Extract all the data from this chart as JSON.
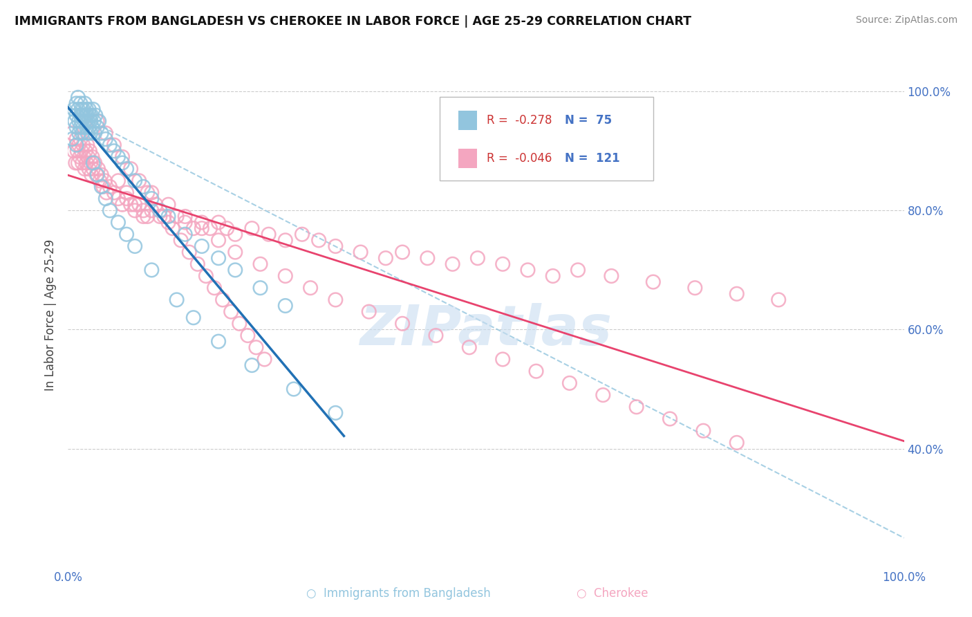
{
  "title": "IMMIGRANTS FROM BANGLADESH VS CHEROKEE IN LABOR FORCE | AGE 25-29 CORRELATION CHART",
  "source": "Source: ZipAtlas.com",
  "ylabel": "In Labor Force | Age 25-29",
  "ytick_labels": [
    "40.0%",
    "60.0%",
    "80.0%",
    "100.0%"
  ],
  "legend_r1": "-0.278",
  "legend_n1": "75",
  "legend_r2": "-0.046",
  "legend_n2": "121",
  "color_blue": "#92c5de",
  "color_pink": "#f4a6c0",
  "color_blue_line": "#2171b5",
  "color_pink_line": "#e8436e",
  "color_dashed": "#92c5de",
  "background_color": "#ffffff",
  "grid_color": "#cccccc",
  "watermark_color": "#c8ddf0",
  "blue_x": [
    0.005,
    0.007,
    0.008,
    0.01,
    0.01,
    0.01,
    0.01,
    0.012,
    0.012,
    0.013,
    0.013,
    0.015,
    0.015,
    0.015,
    0.016,
    0.016,
    0.017,
    0.017,
    0.018,
    0.018,
    0.019,
    0.02,
    0.02,
    0.021,
    0.022,
    0.022,
    0.023,
    0.023,
    0.024,
    0.025,
    0.025,
    0.026,
    0.027,
    0.027,
    0.028,
    0.029,
    0.03,
    0.031,
    0.032,
    0.033,
    0.035,
    0.037,
    0.04,
    0.045,
    0.05,
    0.055,
    0.06,
    0.065,
    0.07,
    0.08,
    0.09,
    0.1,
    0.11,
    0.12,
    0.14,
    0.16,
    0.18,
    0.2,
    0.23,
    0.26,
    0.03,
    0.035,
    0.04,
    0.045,
    0.05,
    0.06,
    0.07,
    0.08,
    0.1,
    0.13,
    0.15,
    0.18,
    0.22,
    0.27,
    0.32
  ],
  "blue_y": [
    0.92,
    0.97,
    0.95,
    0.98,
    0.96,
    0.94,
    0.91,
    0.99,
    0.97,
    0.95,
    0.93,
    0.98,
    0.96,
    0.94,
    0.97,
    0.95,
    0.96,
    0.93,
    0.97,
    0.94,
    0.96,
    0.98,
    0.95,
    0.96,
    0.97,
    0.94,
    0.96,
    0.93,
    0.95,
    0.97,
    0.94,
    0.96,
    0.95,
    0.93,
    0.96,
    0.94,
    0.97,
    0.95,
    0.93,
    0.96,
    0.94,
    0.95,
    0.93,
    0.92,
    0.91,
    0.9,
    0.89,
    0.88,
    0.87,
    0.85,
    0.84,
    0.82,
    0.8,
    0.79,
    0.76,
    0.74,
    0.72,
    0.7,
    0.67,
    0.64,
    0.88,
    0.86,
    0.84,
    0.82,
    0.8,
    0.78,
    0.76,
    0.74,
    0.7,
    0.65,
    0.62,
    0.58,
    0.54,
    0.5,
    0.46
  ],
  "pink_x": [
    0.005,
    0.007,
    0.009,
    0.01,
    0.011,
    0.012,
    0.013,
    0.014,
    0.015,
    0.016,
    0.017,
    0.018,
    0.019,
    0.02,
    0.021,
    0.022,
    0.023,
    0.024,
    0.025,
    0.026,
    0.027,
    0.028,
    0.029,
    0.03,
    0.032,
    0.034,
    0.036,
    0.038,
    0.04,
    0.042,
    0.044,
    0.046,
    0.05,
    0.055,
    0.06,
    0.065,
    0.07,
    0.075,
    0.08,
    0.085,
    0.09,
    0.095,
    0.1,
    0.11,
    0.12,
    0.13,
    0.14,
    0.15,
    0.16,
    0.17,
    0.18,
    0.19,
    0.2,
    0.22,
    0.24,
    0.26,
    0.28,
    0.3,
    0.32,
    0.35,
    0.38,
    0.4,
    0.43,
    0.46,
    0.49,
    0.52,
    0.55,
    0.58,
    0.61,
    0.65,
    0.7,
    0.75,
    0.8,
    0.85,
    0.06,
    0.07,
    0.08,
    0.09,
    0.1,
    0.12,
    0.14,
    0.16,
    0.18,
    0.2,
    0.23,
    0.26,
    0.29,
    0.32,
    0.36,
    0.4,
    0.44,
    0.48,
    0.52,
    0.56,
    0.6,
    0.64,
    0.68,
    0.72,
    0.76,
    0.8,
    0.035,
    0.045,
    0.055,
    0.065,
    0.075,
    0.085,
    0.095,
    0.105,
    0.115,
    0.125,
    0.135,
    0.145,
    0.155,
    0.165,
    0.175,
    0.185,
    0.195,
    0.205,
    0.215,
    0.225,
    0.235
  ],
  "pink_y": [
    0.93,
    0.9,
    0.88,
    0.92,
    0.9,
    0.88,
    0.91,
    0.89,
    0.92,
    0.9,
    0.88,
    0.91,
    0.89,
    0.87,
    0.9,
    0.88,
    0.91,
    0.89,
    0.87,
    0.9,
    0.88,
    0.86,
    0.89,
    0.87,
    0.88,
    0.86,
    0.87,
    0.85,
    0.86,
    0.84,
    0.85,
    0.83,
    0.84,
    0.83,
    0.82,
    0.81,
    0.82,
    0.81,
    0.8,
    0.81,
    0.8,
    0.79,
    0.8,
    0.79,
    0.78,
    0.79,
    0.78,
    0.77,
    0.78,
    0.77,
    0.78,
    0.77,
    0.76,
    0.77,
    0.76,
    0.75,
    0.76,
    0.75,
    0.74,
    0.73,
    0.72,
    0.73,
    0.72,
    0.71,
    0.72,
    0.71,
    0.7,
    0.69,
    0.7,
    0.69,
    0.68,
    0.67,
    0.66,
    0.65,
    0.85,
    0.83,
    0.81,
    0.79,
    0.83,
    0.81,
    0.79,
    0.77,
    0.75,
    0.73,
    0.71,
    0.69,
    0.67,
    0.65,
    0.63,
    0.61,
    0.59,
    0.57,
    0.55,
    0.53,
    0.51,
    0.49,
    0.47,
    0.45,
    0.43,
    0.41,
    0.95,
    0.93,
    0.91,
    0.89,
    0.87,
    0.85,
    0.83,
    0.81,
    0.79,
    0.77,
    0.75,
    0.73,
    0.71,
    0.69,
    0.67,
    0.65,
    0.63,
    0.61,
    0.59,
    0.57,
    0.55
  ]
}
